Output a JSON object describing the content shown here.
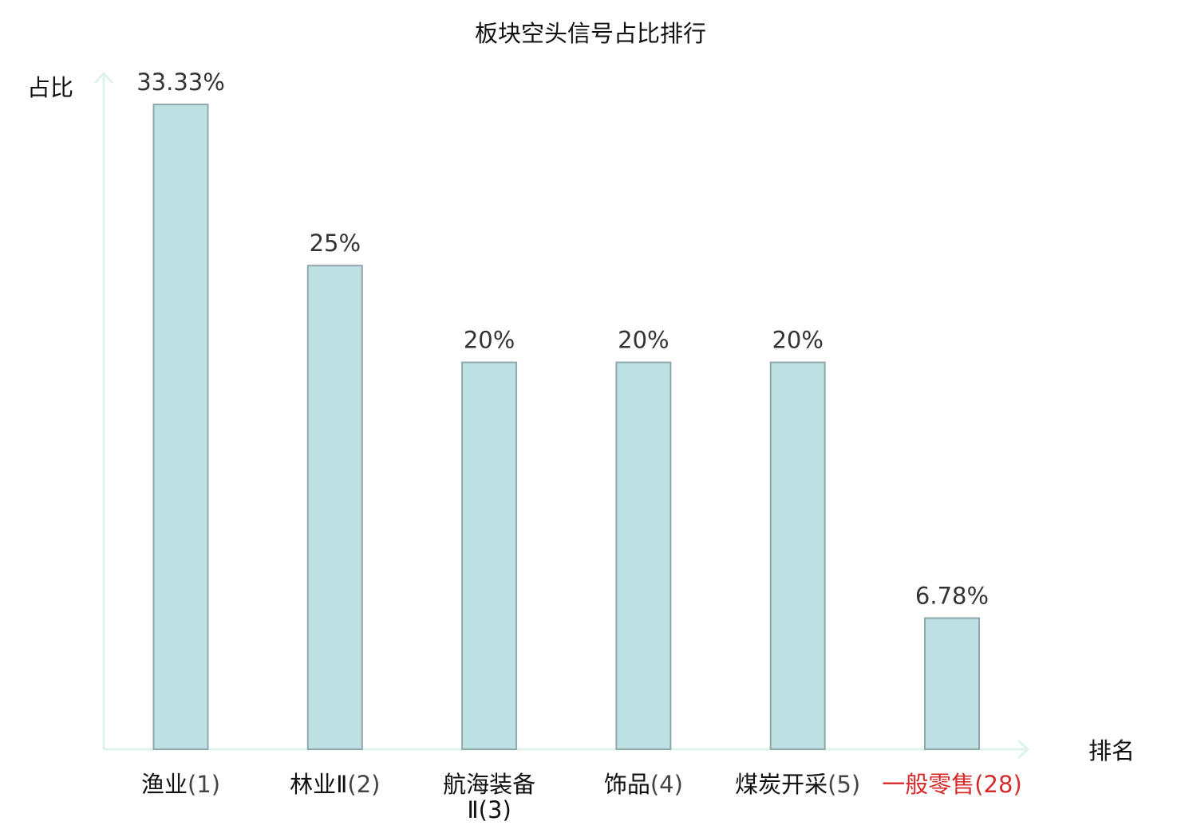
{
  "chart_data": {
    "type": "bar",
    "title": "板块空头信号占比排行",
    "xlabel": "排名",
    "ylabel": "占比",
    "categories": [
      {
        "name": "渔业",
        "rank": "(1)",
        "highlight": false
      },
      {
        "name": "林业Ⅱ",
        "rank": "(2)",
        "highlight": false
      },
      {
        "name": "航海装备",
        "line2": "Ⅱ(3)",
        "rank": "",
        "highlight": false
      },
      {
        "name": "饰品",
        "rank": "(4)",
        "highlight": false
      },
      {
        "name": "煤炭开采",
        "rank": "(5)",
        "highlight": false
      },
      {
        "name": "一般零售",
        "rank": "(28)",
        "highlight": true
      }
    ],
    "values": [
      33.33,
      25,
      20,
      20,
      20,
      6.78
    ],
    "value_labels": [
      "33.33%",
      "25%",
      "20%",
      "20%",
      "20%",
      "6.78%"
    ],
    "ylim": [
      0,
      35
    ],
    "grid": false,
    "colors": {
      "bar_fill": "#bde1e3",
      "bar_stroke": "#8fa8aa",
      "axis": "#e0f2ee",
      "highlight": "#d62b2b",
      "rank_text": "#444444"
    }
  }
}
